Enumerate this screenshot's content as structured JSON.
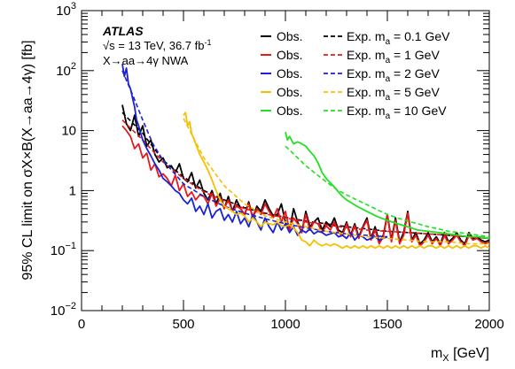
{
  "chart_data": {
    "type": "line",
    "xlabel": "m",
    "xlabel_sub": "X",
    "xlabel_unit": " [GeV]",
    "ylabel": "95% CL limit on σX×B(X→aa→4γ) [fb]",
    "xlim": [
      0,
      2000
    ],
    "ylim": [
      0.01,
      1000
    ],
    "yscale": "log",
    "x_ticks": [
      "0",
      "500",
      "1000",
      "1500",
      "2000"
    ],
    "y_ticks": [
      {
        "base": "10",
        "exp": "−2"
      },
      {
        "base": "10",
        "exp": "−1"
      },
      {
        "base": "1",
        "exp": ""
      },
      {
        "base": "10",
        "exp": ""
      },
      {
        "base": "10",
        "exp": "2"
      },
      {
        "base": "10",
        "exp": "3"
      }
    ],
    "legend_placement": "top-right",
    "annotations": {
      "experiment": "ATLAS",
      "energy": "√s = 13 TeV, 36.7 fb",
      "energy_sup": "-1",
      "process": "X→aa→4γ NWA"
    },
    "legend": [
      {
        "obs": "Obs.",
        "exp": "Exp. m",
        "sub": "a",
        "mass": " = 0.1 GeV",
        "color": "#000000"
      },
      {
        "obs": "Obs.",
        "exp": "Exp. m",
        "sub": "a",
        "mass": " = 1 GeV",
        "color": "#e8191c"
      },
      {
        "obs": "Obs.",
        "exp": "Exp. m",
        "sub": "a",
        "mass": " = 2 GeV",
        "color": "#1a21d6"
      },
      {
        "obs": "Obs.",
        "exp": "Exp. m",
        "sub": "a",
        "mass": " = 5 GeV",
        "color": "#f5c000"
      },
      {
        "obs": "Obs.",
        "exp": "Exp. m",
        "sub": "a",
        "mass": " = 10 GeV",
        "color": "#22e022"
      }
    ],
    "series": [
      {
        "color": "#000000",
        "observed": {
          "x": [
            200,
            220,
            240,
            260,
            280,
            300,
            320,
            340,
            360,
            380,
            400,
            420,
            440,
            460,
            480,
            500,
            520,
            540,
            560,
            580,
            600,
            620,
            640,
            660,
            680,
            700,
            720,
            740,
            760,
            780,
            800,
            820,
            840,
            860,
            880,
            900,
            920,
            940,
            960,
            980,
            1000,
            1020,
            1040,
            1060,
            1080,
            1100,
            1120,
            1140,
            1160,
            1180,
            1200,
            1220,
            1240,
            1260,
            1280,
            1300,
            1320,
            1340,
            1360,
            1380,
            1400,
            1420,
            1440,
            1460,
            1480,
            1500,
            1520,
            1540,
            1560,
            1580,
            1600,
            1620,
            1640,
            1660,
            1680,
            1700,
            1720,
            1740,
            1760,
            1780,
            1800,
            1820,
            1840,
            1860,
            1880,
            1900,
            1920,
            1940,
            1960,
            1980,
            2000
          ],
          "y": [
            27,
            13,
            10,
            18,
            8,
            12,
            5.5,
            7,
            4,
            3,
            3.5,
            2.4,
            2.6,
            2,
            2.8,
            1.6,
            1.4,
            2,
            1.1,
            1.5,
            0.9,
            0.7,
            1,
            0.6,
            0.9,
            0.5,
            0.8,
            0.45,
            0.7,
            0.5,
            0.4,
            0.65,
            0.35,
            0.55,
            0.45,
            0.7,
            0.5,
            0.38,
            0.4,
            0.6,
            0.3,
            0.22,
            0.5,
            0.3,
            0.2,
            0.45,
            0.25,
            0.3,
            0.35,
            0.22,
            0.3,
            0.25,
            0.35,
            0.22,
            0.2,
            0.3,
            0.18,
            0.28,
            0.17,
            0.25,
            0.35,
            0.16,
            0.25,
            0.14,
            0.18,
            0.4,
            0.15,
            0.35,
            0.14,
            0.2,
            0.45,
            0.15,
            0.2,
            0.13,
            0.15,
            0.2,
            0.14,
            0.17,
            0.13,
            0.2,
            0.14,
            0.16,
            0.2,
            0.15,
            0.13,
            0.2,
            0.16,
            0.17,
            0.15,
            0.14,
            0.15
          ]
        },
        "expected": {
          "x": [
            200,
            300,
            400,
            500,
            600,
            700,
            800,
            900,
            1000,
            1100,
            1200,
            1300,
            1400,
            1500,
            1600,
            1700,
            1800,
            1900,
            2000
          ],
          "y": [
            20,
            9,
            3.2,
            1.7,
            1.0,
            0.7,
            0.52,
            0.42,
            0.36,
            0.31,
            0.28,
            0.25,
            0.23,
            0.21,
            0.2,
            0.19,
            0.18,
            0.17,
            0.16
          ]
        }
      },
      {
        "color": "#e8191c",
        "observed": {
          "x": [
            200,
            220,
            240,
            260,
            280,
            300,
            320,
            340,
            360,
            380,
            400,
            420,
            440,
            460,
            480,
            500,
            520,
            540,
            560,
            580,
            600,
            620,
            640,
            660,
            680,
            700,
            720,
            740,
            760,
            780,
            800,
            820,
            840,
            860,
            880,
            900,
            920,
            940,
            960,
            980,
            1000,
            1020,
            1040,
            1060,
            1080,
            1100,
            1120,
            1140,
            1160,
            1180,
            1200,
            1220,
            1240,
            1260,
            1280,
            1300,
            1320,
            1340,
            1360,
            1380,
            1400,
            1420,
            1440,
            1460,
            1480,
            1500,
            1520,
            1540,
            1560,
            1580,
            1600,
            1620,
            1640,
            1660,
            1680,
            1700,
            1720,
            1740,
            1760,
            1780,
            1800,
            1820,
            1840,
            1860,
            1880,
            1900,
            1920,
            1940,
            1960,
            1980,
            2000
          ],
          "y": [
            12,
            10,
            8,
            5,
            6,
            3.5,
            4.2,
            2.2,
            2.8,
            1.7,
            1.9,
            1.6,
            1.2,
            1.8,
            1.0,
            1.3,
            0.8,
            0.95,
            0.7,
            0.85,
            0.8,
            0.6,
            0.9,
            0.55,
            0.75,
            0.5,
            0.7,
            0.45,
            0.55,
            0.5,
            0.4,
            0.6,
            0.35,
            0.5,
            0.4,
            0.6,
            0.45,
            0.35,
            0.5,
            0.3,
            0.45,
            0.22,
            0.35,
            0.28,
            0.2,
            0.4,
            0.22,
            0.3,
            0.28,
            0.2,
            0.26,
            0.22,
            0.3,
            0.2,
            0.18,
            0.28,
            0.17,
            0.26,
            0.16,
            0.24,
            0.32,
            0.15,
            0.22,
            0.13,
            0.17,
            0.38,
            0.14,
            0.32,
            0.13,
            0.18,
            0.42,
            0.14,
            0.18,
            0.12,
            0.14,
            0.18,
            0.13,
            0.16,
            0.12,
            0.18,
            0.13,
            0.15,
            0.18,
            0.14,
            0.12,
            0.18,
            0.15,
            0.16,
            0.14,
            0.13,
            0.14
          ]
        },
        "expected": {
          "x": [
            200,
            300,
            400,
            500,
            600,
            700,
            800,
            900,
            1000,
            1100,
            1200,
            1300,
            1400,
            1500,
            1600,
            1700,
            1800,
            1900,
            2000
          ],
          "y": [
            15,
            7,
            3.0,
            1.6,
            0.95,
            0.68,
            0.5,
            0.41,
            0.35,
            0.3,
            0.27,
            0.24,
            0.22,
            0.21,
            0.2,
            0.19,
            0.18,
            0.17,
            0.16
          ]
        }
      },
      {
        "color": "#1a21d6",
        "observed": {
          "x": [
            200,
            210,
            220,
            230,
            240,
            250,
            260,
            270,
            280,
            290,
            300,
            320,
            340,
            360,
            380,
            400,
            420,
            440,
            460,
            480,
            500,
            520,
            540,
            560,
            580,
            600,
            620,
            640,
            660,
            680,
            700,
            720,
            740,
            760,
            780,
            800,
            820,
            840,
            860,
            880,
            900,
            920,
            940,
            960,
            980,
            1000,
            1020,
            1040,
            1060,
            1080,
            1100,
            1120,
            1140,
            1160,
            1180,
            1200,
            1220,
            1240,
            1260,
            1280,
            1300,
            1320,
            1340,
            1360,
            1380,
            1400,
            1420,
            1440,
            1460,
            1480,
            1500
          ],
          "y": [
            130,
            80,
            110,
            60,
            50,
            35,
            25,
            15,
            12,
            9,
            7,
            5,
            3.8,
            2.8,
            2.2,
            1.6,
            1.4,
            1.2,
            1.0,
            0.9,
            0.7,
            0.6,
            0.75,
            0.45,
            0.55,
            0.4,
            0.6,
            0.35,
            0.45,
            0.5,
            0.32,
            0.4,
            0.3,
            0.45,
            0.28,
            0.35,
            0.25,
            0.4,
            0.3,
            0.22,
            0.35,
            0.25,
            0.2,
            0.3,
            0.22,
            0.28,
            0.2,
            0.25,
            0.18,
            0.22,
            0.2,
            0.23,
            0.19,
            0.21,
            0.2,
            0.18,
            0.19,
            0.2,
            0.17,
            0.18,
            0.16,
            0.2,
            0.15,
            0.18,
            0.17,
            0.15,
            0.16,
            0.17,
            0.15,
            0.16,
            0.17
          ]
        },
        "expected": {
          "x": [
            200,
            250,
            300,
            350,
            400,
            500,
            600,
            700,
            800,
            900,
            1000,
            1100,
            1200,
            1300,
            1400,
            1500
          ],
          "y": [
            100,
            40,
            15,
            6,
            3.2,
            1.3,
            0.8,
            0.55,
            0.42,
            0.34,
            0.28,
            0.24,
            0.21,
            0.19,
            0.18,
            0.17
          ]
        }
      },
      {
        "color": "#f5c000",
        "observed": {
          "x": [
            500,
            510,
            520,
            530,
            540,
            560,
            580,
            600,
            620,
            640,
            660,
            680,
            700,
            720,
            740,
            760,
            780,
            800,
            820,
            840,
            860,
            880,
            900,
            920,
            940,
            960,
            980,
            1000,
            1020,
            1040,
            1060,
            1080,
            1100,
            1120,
            1140,
            1160,
            1180,
            1200,
            1220,
            1240,
            1260,
            1280,
            1300,
            1320,
            1340,
            1360,
            1380,
            1400,
            1420,
            1440,
            1460,
            1480,
            1500,
            1520,
            1540,
            1560,
            1580,
            1600,
            1620,
            1640,
            1660,
            1680,
            1700,
            1720,
            1740,
            1760,
            1780,
            1800,
            1820,
            1840,
            1860,
            1880,
            1900,
            1920,
            1940,
            1960,
            1980,
            2000
          ],
          "y": [
            18,
            20,
            12,
            14,
            9,
            6,
            4,
            3,
            2.2,
            1.5,
            1.0,
            0.7,
            0.55,
            0.5,
            0.45,
            0.4,
            0.42,
            0.38,
            0.3,
            0.35,
            0.3,
            0.25,
            0.3,
            0.28,
            0.27,
            0.3,
            0.26,
            0.25,
            0.27,
            0.24,
            0.2,
            0.15,
            0.14,
            0.12,
            0.15,
            0.13,
            0.12,
            0.13,
            0.12,
            0.13,
            0.12,
            0.11,
            0.12,
            0.11,
            0.12,
            0.11,
            0.12,
            0.11,
            0.12,
            0.11,
            0.12,
            0.11,
            0.12,
            0.11,
            0.12,
            0.11,
            0.12,
            0.11,
            0.12,
            0.11,
            0.12,
            0.11,
            0.12,
            0.12,
            0.11,
            0.12,
            0.11,
            0.12,
            0.11,
            0.12,
            0.11,
            0.12,
            0.11,
            0.12,
            0.12,
            0.11,
            0.12,
            0.11
          ]
        },
        "expected": {
          "x": [
            500,
            600,
            700,
            800,
            900,
            1000,
            1100,
            1200,
            1300,
            1400,
            1500,
            1600,
            1700,
            1800,
            1900,
            2000
          ],
          "y": [
            16,
            3.5,
            1.2,
            0.6,
            0.38,
            0.3,
            0.25,
            0.21,
            0.19,
            0.17,
            0.16,
            0.15,
            0.14,
            0.14,
            0.13,
            0.13
          ]
        }
      },
      {
        "color": "#22e022",
        "observed": {
          "x": [
            1000,
            1010,
            1020,
            1040,
            1060,
            1080,
            1100,
            1120,
            1140,
            1160,
            1180,
            1200,
            1220,
            1240,
            1260,
            1280,
            1300,
            1350,
            1400,
            1450,
            1500,
            1550,
            1600,
            1650,
            1700,
            1750,
            1800,
            1850,
            1900,
            1950,
            2000
          ],
          "y": [
            9.5,
            7,
            8,
            6,
            6.5,
            6,
            5.5,
            4.5,
            3.8,
            2.9,
            2.0,
            1.6,
            1.35,
            1.15,
            0.95,
            0.8,
            0.7,
            0.55,
            0.45,
            0.37,
            0.32,
            0.28,
            0.25,
            0.22,
            0.21,
            0.2,
            0.19,
            0.18,
            0.17,
            0.17,
            0.16
          ]
        },
        "expected": {
          "x": [
            1000,
            1050,
            1100,
            1150,
            1200,
            1250,
            1300,
            1350,
            1400,
            1450,
            1500,
            1550,
            1600,
            1650,
            1700,
            1750,
            1800,
            1850,
            1900,
            1950,
            2000
          ],
          "y": [
            5.5,
            3.8,
            2.6,
            1.9,
            1.4,
            1.05,
            0.85,
            0.7,
            0.58,
            0.48,
            0.4,
            0.35,
            0.31,
            0.28,
            0.25,
            0.23,
            0.21,
            0.2,
            0.19,
            0.18,
            0.17
          ]
        }
      }
    ]
  }
}
